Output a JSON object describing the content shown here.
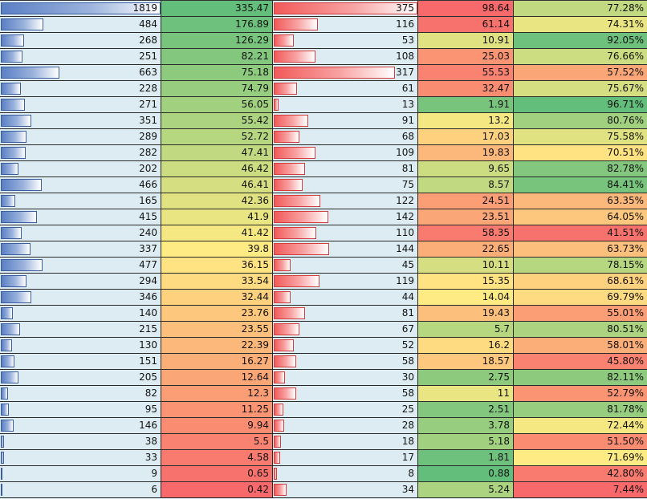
{
  "columns": [
    {
      "key": "col1",
      "format": "data-bar",
      "bar_color": "#5a7fc4"
    },
    {
      "key": "col2",
      "format": "color-scale"
    },
    {
      "key": "col3",
      "format": "data-bar",
      "bar_color": "#f25a5a"
    },
    {
      "key": "col4",
      "format": "color-scale-reversed"
    },
    {
      "key": "col5",
      "format": "color-scale"
    }
  ],
  "color_scale": {
    "low": "#f8696b",
    "mid": "#ffeb84",
    "high": "#63be7b"
  },
  "rows": [
    {
      "col1": "1819",
      "col2": "335.47",
      "col3": "375",
      "col4": "98.64",
      "col5": "77.28%"
    },
    {
      "col1": "484",
      "col2": "176.89",
      "col3": "116",
      "col4": "61.14",
      "col5": "74.31%"
    },
    {
      "col1": "268",
      "col2": "126.29",
      "col3": "53",
      "col4": "10.91",
      "col5": "92.05%"
    },
    {
      "col1": "251",
      "col2": "82.21",
      "col3": "108",
      "col4": "25.03",
      "col5": "76.66%"
    },
    {
      "col1": "663",
      "col2": "75.18",
      "col3": "317",
      "col4": "55.53",
      "col5": "57.52%"
    },
    {
      "col1": "228",
      "col2": "74.79",
      "col3": "61",
      "col4": "32.47",
      "col5": "75.67%"
    },
    {
      "col1": "271",
      "col2": "56.05",
      "col3": "13",
      "col4": "1.91",
      "col5": "96.71%"
    },
    {
      "col1": "351",
      "col2": "55.42",
      "col3": "91",
      "col4": "13.2",
      "col5": "80.76%"
    },
    {
      "col1": "289",
      "col2": "52.72",
      "col3": "68",
      "col4": "17.03",
      "col5": "75.58%"
    },
    {
      "col1": "282",
      "col2": "47.41",
      "col3": "109",
      "col4": "19.83",
      "col5": "70.51%"
    },
    {
      "col1": "202",
      "col2": "46.42",
      "col3": "81",
      "col4": "9.65",
      "col5": "82.78%"
    },
    {
      "col1": "466",
      "col2": "46.41",
      "col3": "75",
      "col4": "8.57",
      "col5": "84.41%"
    },
    {
      "col1": "165",
      "col2": "42.36",
      "col3": "122",
      "col4": "24.51",
      "col5": "63.35%"
    },
    {
      "col1": "415",
      "col2": "41.9",
      "col3": "142",
      "col4": "23.51",
      "col5": "64.05%"
    },
    {
      "col1": "240",
      "col2": "41.42",
      "col3": "110",
      "col4": "58.35",
      "col5": "41.51%"
    },
    {
      "col1": "337",
      "col2": "39.8",
      "col3": "144",
      "col4": "22.65",
      "col5": "63.73%"
    },
    {
      "col1": "477",
      "col2": "36.15",
      "col3": "45",
      "col4": "10.11",
      "col5": "78.15%"
    },
    {
      "col1": "294",
      "col2": "33.54",
      "col3": "119",
      "col4": "15.35",
      "col5": "68.61%"
    },
    {
      "col1": "346",
      "col2": "32.44",
      "col3": "44",
      "col4": "14.04",
      "col5": "69.79%"
    },
    {
      "col1": "140",
      "col2": "23.76",
      "col3": "81",
      "col4": "19.43",
      "col5": "55.01%"
    },
    {
      "col1": "215",
      "col2": "23.55",
      "col3": "67",
      "col4": "5.7",
      "col5": "80.51%"
    },
    {
      "col1": "130",
      "col2": "22.39",
      "col3": "52",
      "col4": "16.2",
      "col5": "58.01%"
    },
    {
      "col1": "151",
      "col2": "16.27",
      "col3": "58",
      "col4": "18.57",
      "col5": "45.80%"
    },
    {
      "col1": "205",
      "col2": "12.64",
      "col3": "30",
      "col4": "2.75",
      "col5": "82.11%"
    },
    {
      "col1": "82",
      "col2": "12.3",
      "col3": "58",
      "col4": "11",
      "col5": "52.79%"
    },
    {
      "col1": "95",
      "col2": "11.25",
      "col3": "25",
      "col4": "2.51",
      "col5": "81.78%"
    },
    {
      "col1": "146",
      "col2": "9.94",
      "col3": "28",
      "col4": "3.78",
      "col5": "72.44%"
    },
    {
      "col1": "38",
      "col2": "5.5",
      "col3": "18",
      "col4": "5.18",
      "col5": "51.50%"
    },
    {
      "col1": "33",
      "col2": "4.58",
      "col3": "17",
      "col4": "1.81",
      "col5": "71.69%"
    },
    {
      "col1": "9",
      "col2": "0.65",
      "col3": "8",
      "col4": "0.88",
      "col5": "42.80%"
    },
    {
      "col1": "6",
      "col2": "0.42",
      "col3": "34",
      "col4": "5.24",
      "col5": "7.44%"
    }
  ]
}
